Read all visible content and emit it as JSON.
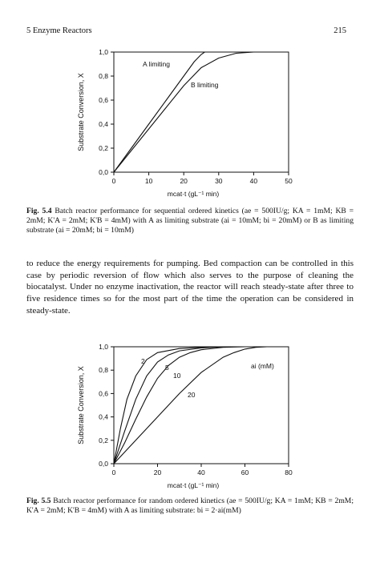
{
  "header": {
    "left": "5 Enzyme Reactors",
    "right": "215"
  },
  "figure1": {
    "caption_label": "Fig. 5.4",
    "caption_text": "Batch reactor performance for sequential ordered kinetics (ae = 500IU/g; KA = 1mM; KB = 2mM; K'A = 2mM; K'B = 4mM) with A as limiting substrate (ai = 10mM; bi = 20mM) or B as limiting substrate (ai = 20mM; bi = 10mM)"
  },
  "body_text": "to reduce the energy requirements for pumping. Bed compaction can be controlled in this case by periodic reversion of flow which also serves to the purpose of cleaning the biocatalyst. Under no enzyme inactivation, the reactor will reach steady-state after three to five residence times so for the most part of the time the operation can be considered in steady-state.",
  "figure2": {
    "caption_label": "Fig. 5.5",
    "caption_text": "Batch reactor performance for random ordered kinetics (ae = 500IU/g; KA = 1mM; KB = 2mM; K'A = 2mM; K'B = 4mM) with A as limiting substrate: bi = 2·ai(mM)"
  },
  "chart_data": [
    {
      "type": "line",
      "title": "",
      "xlabel": "mcat·t (gL⁻¹ min)",
      "ylabel": "Substrate Conversion, X",
      "xlim": [
        0,
        50
      ],
      "ylim": [
        0,
        1.0
      ],
      "xticks": [
        "0",
        "10",
        "20",
        "30",
        "40",
        "50"
      ],
      "yticks": [
        "0,0",
        "0,2",
        "0,4",
        "0,6",
        "0,8",
        "1,0"
      ],
      "legend": "none",
      "series": [
        {
          "name": "A limiting",
          "x": [
            0,
            5,
            10,
            15,
            20,
            23,
            25,
            26,
            27
          ],
          "y": [
            0,
            0.2,
            0.4,
            0.6,
            0.8,
            0.92,
            0.98,
            1.0,
            1.0
          ]
        },
        {
          "name": "B limiting",
          "x": [
            0,
            5,
            10,
            15,
            20,
            25,
            30,
            35,
            40,
            45
          ],
          "y": [
            0,
            0.18,
            0.36,
            0.54,
            0.72,
            0.87,
            0.95,
            0.99,
            1.0,
            1.0
          ]
        }
      ]
    },
    {
      "type": "line",
      "title": "",
      "xlabel": "mcat·t (gL⁻¹ min)",
      "ylabel": "Substrate Conversion, X",
      "xlim": [
        0,
        80
      ],
      "ylim": [
        0,
        1.0
      ],
      "xticks": [
        "0",
        "20",
        "40",
        "60",
        "80"
      ],
      "yticks": [
        "0,0",
        "0,2",
        "0,4",
        "0,6",
        "0,8",
        "1,0"
      ],
      "legend_title": "ai (mM)",
      "series": [
        {
          "name": "2",
          "x": [
            0,
            3,
            6,
            10,
            15,
            20,
            30,
            40,
            50,
            60,
            70
          ],
          "y": [
            0,
            0.3,
            0.55,
            0.75,
            0.89,
            0.95,
            0.985,
            0.995,
            1.0,
            1.0,
            1.0
          ]
        },
        {
          "name": "5",
          "x": [
            0,
            5,
            10,
            15,
            20,
            25,
            30,
            40,
            50,
            60,
            70
          ],
          "y": [
            0,
            0.28,
            0.55,
            0.75,
            0.87,
            0.93,
            0.965,
            0.99,
            1.0,
            1.0,
            1.0
          ]
        },
        {
          "name": "10",
          "x": [
            0,
            5,
            10,
            15,
            20,
            25,
            30,
            35,
            40,
            50,
            60,
            70
          ],
          "y": [
            0,
            0.18,
            0.38,
            0.57,
            0.73,
            0.84,
            0.91,
            0.95,
            0.975,
            0.995,
            1.0,
            1.0
          ]
        },
        {
          "name": "20",
          "x": [
            0,
            10,
            20,
            30,
            40,
            50,
            55,
            60,
            65,
            70
          ],
          "y": [
            0,
            0.2,
            0.4,
            0.6,
            0.78,
            0.91,
            0.95,
            0.98,
            0.995,
            1.0
          ]
        }
      ]
    }
  ]
}
